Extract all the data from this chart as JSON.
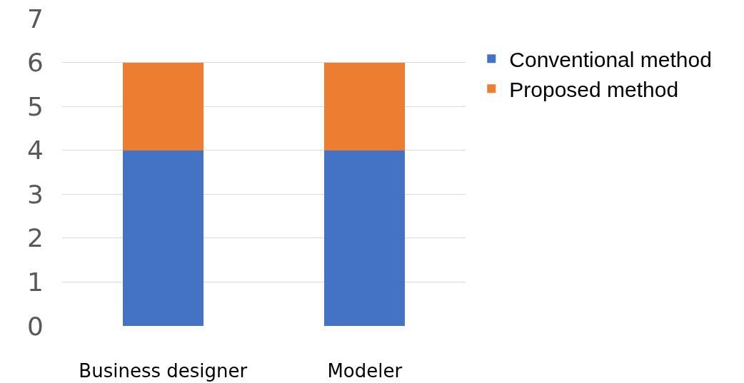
{
  "chart_data": {
    "type": "bar",
    "stacked": true,
    "categories": [
      "Business designer",
      "Modeler"
    ],
    "series": [
      {
        "name": "Conventional method",
        "color": "#4472c4",
        "values": [
          4,
          4
        ]
      },
      {
        "name": "Proposed method",
        "color": "#ed7d31",
        "values": [
          2,
          2
        ]
      }
    ],
    "ylim": [
      0,
      7
    ],
    "yticks": [
      0,
      1,
      2,
      3,
      4,
      5,
      6,
      7
    ],
    "grid": "y",
    "legend": "right"
  }
}
